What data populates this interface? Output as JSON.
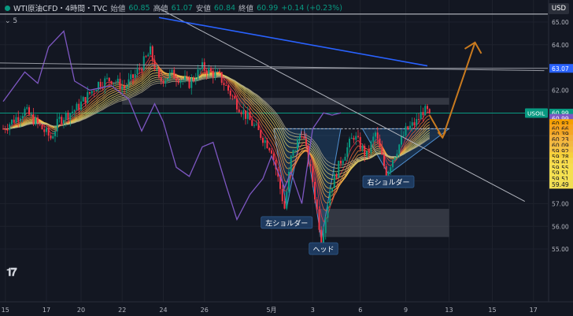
{
  "header": {
    "symbol": "WTI原油CFD・4時間・TVC",
    "open_label": "始値",
    "open": "60.85",
    "high_label": "高値",
    "high": "61.07",
    "low_label": "安値",
    "low": "60.84",
    "close_label": "終値",
    "close": "60.99",
    "change": "+0.14 (+0.23%)",
    "indicator_toggle": "⌄ 5"
  },
  "currency_badge": "USD",
  "chart_data": {
    "type": "candlestick",
    "ylim": [
      54.6,
      65.4
    ],
    "y_ticks": [
      55.0,
      56.0,
      57.0,
      58.0,
      59.0,
      60.0,
      61.0,
      62.0,
      63.0,
      64.0,
      65.0
    ],
    "x_ticks": [
      {
        "label": "15",
        "bar": 1
      },
      {
        "label": "17",
        "bar": 20
      },
      {
        "label": "20",
        "bar": 36
      },
      {
        "label": "22",
        "bar": 55
      },
      {
        "label": "24",
        "bar": 74
      },
      {
        "label": "26",
        "bar": 93
      },
      {
        "label": "5月",
        "bar": 124
      },
      {
        "label": "3",
        "bar": 143
      },
      {
        "label": "6",
        "bar": 165
      },
      {
        "label": "9",
        "bar": 186
      },
      {
        "label": "13",
        "bar": 206
      },
      {
        "label": "15",
        "bar": 226
      },
      {
        "label": "17",
        "bar": 245
      }
    ],
    "bar_count": 198,
    "pivots": [
      {
        "bar": 0,
        "price": 60.3
      },
      {
        "bar": 10,
        "price": 61.1
      },
      {
        "bar": 22,
        "price": 59.9
      },
      {
        "bar": 26,
        "price": 60.7
      },
      {
        "bar": 34,
        "price": 61.2
      },
      {
        "bar": 44,
        "price": 62.3
      },
      {
        "bar": 50,
        "price": 62.5
      },
      {
        "bar": 56,
        "price": 62.1
      },
      {
        "bar": 62,
        "price": 62.8
      },
      {
        "bar": 68,
        "price": 63.7
      },
      {
        "bar": 72,
        "price": 62.4
      },
      {
        "bar": 78,
        "price": 62.7
      },
      {
        "bar": 86,
        "price": 62.3
      },
      {
        "bar": 92,
        "price": 63.0
      },
      {
        "bar": 100,
        "price": 62.6
      },
      {
        "bar": 108,
        "price": 61.4
      },
      {
        "bar": 116,
        "price": 60.4
      },
      {
        "bar": 124,
        "price": 59.4
      },
      {
        "bar": 130,
        "price": 56.8
      },
      {
        "bar": 133,
        "price": 59.0
      },
      {
        "bar": 138,
        "price": 60.2
      },
      {
        "bar": 143,
        "price": 58.0
      },
      {
        "bar": 147,
        "price": 55.4
      },
      {
        "bar": 151,
        "price": 57.6
      },
      {
        "bar": 156,
        "price": 58.9
      },
      {
        "bar": 162,
        "price": 60.0
      },
      {
        "bar": 168,
        "price": 59.1
      },
      {
        "bar": 172,
        "price": 60.1
      },
      {
        "bar": 177,
        "price": 58.3
      },
      {
        "bar": 180,
        "price": 59.0
      },
      {
        "bar": 186,
        "price": 60.2
      },
      {
        "bar": 191,
        "price": 60.6
      },
      {
        "bar": 194,
        "price": 61.1
      },
      {
        "bar": 197,
        "price": 60.99
      }
    ],
    "horizontal_lines": [
      {
        "price": 65.35,
        "color": "#d1d4dc"
      },
      {
        "price": 62.96,
        "color": "#9598a1"
      },
      {
        "price": 60.99,
        "color": "#089981"
      }
    ],
    "zones": [
      {
        "from_bar": 55,
        "to_bar": 206,
        "price_low": 61.36,
        "price_high": 61.66
      },
      {
        "from_bar": 146,
        "to_bar": 206,
        "price_low": 55.53,
        "price_high": 56.77
      }
    ],
    "trendlines": [
      {
        "from": {
          "bar": 72,
          "price": 65.6
        },
        "to": {
          "bar": 241,
          "price": 57.1
        },
        "color": "#b2b5be"
      },
      {
        "from": {
          "bar": 72,
          "price": 65.2
        },
        "to": {
          "bar": 196,
          "price": 63.07
        },
        "color": "#2962ff"
      },
      {
        "from": {
          "bar": -2,
          "price": 63.2
        },
        "to": {
          "bar": 250,
          "price": 62.86
        },
        "color": "#9598a1"
      }
    ],
    "oscillator_line": {
      "color": "#7e57c2",
      "points": [
        {
          "bar": 0,
          "price": 61.5
        },
        {
          "bar": 10,
          "price": 62.8
        },
        {
          "bar": 16,
          "price": 62.3
        },
        {
          "bar": 21,
          "price": 63.9
        },
        {
          "bar": 28,
          "price": 64.6
        },
        {
          "bar": 33,
          "price": 62.4
        },
        {
          "bar": 40,
          "price": 62.0
        },
        {
          "bar": 50,
          "price": 62.2
        },
        {
          "bar": 58,
          "price": 61.6
        },
        {
          "bar": 64,
          "price": 60.2
        },
        {
          "bar": 70,
          "price": 61.4
        },
        {
          "bar": 74,
          "price": 60.6
        },
        {
          "bar": 80,
          "price": 58.6
        },
        {
          "bar": 86,
          "price": 58.2
        },
        {
          "bar": 92,
          "price": 59.5
        },
        {
          "bar": 97,
          "price": 59.7
        },
        {
          "bar": 103,
          "price": 57.8
        },
        {
          "bar": 108,
          "price": 56.3
        },
        {
          "bar": 114,
          "price": 57.4
        },
        {
          "bar": 120,
          "price": 58.1
        },
        {
          "bar": 124,
          "price": 59.1
        },
        {
          "bar": 130,
          "price": 57.7
        },
        {
          "bar": 133,
          "price": 58.4
        },
        {
          "bar": 138,
          "price": 57.0
        },
        {
          "bar": 143,
          "price": 60.3
        },
        {
          "bar": 148,
          "price": 61.0
        },
        {
          "bar": 152,
          "price": 60.9
        },
        {
          "bar": 156,
          "price": 61.0
        }
      ]
    },
    "head_shoulders": {
      "neckline_price": 60.3,
      "left_shoulder": {
        "from_bar": 125,
        "bottom_bar": 131,
        "bottom_price": 56.8,
        "to_bar": 138
      },
      "head": {
        "from_bar": 139,
        "bottom_bar": 147,
        "bottom_price": 55.4,
        "to_bar": 156
      },
      "right_shoulder": {
        "from_bar": 166,
        "bottom_bar": 178,
        "bottom_price": 58.3,
        "to_bar": 206
      }
    },
    "projection_arrows": [
      {
        "from": {
          "bar": 197,
          "price": 60.9
        },
        "to": {
          "bar": 203,
          "price": 59.9
        }
      },
      {
        "from": {
          "bar": 203,
          "price": 59.9
        },
        "to": {
          "bar": 218,
          "price": 64.1
        }
      }
    ],
    "annotations": [
      {
        "text": "左ショルダー",
        "bar": 131,
        "price": 56.15
      },
      {
        "text": "ヘッド",
        "bar": 148,
        "price": 55.0
      },
      {
        "text": "右ショルダー",
        "bar": 178,
        "price": 57.95
      }
    ],
    "price_labels": [
      {
        "text": "65.00",
        "price": 65.0
      },
      {
        "text": "64.00",
        "price": 64.0
      },
      {
        "text": "62.00",
        "price": 62.0
      },
      {
        "text": "57.00",
        "price": 57.0
      },
      {
        "text": "56.00",
        "price": 56.0
      },
      {
        "text": "55.00",
        "price": 55.0
      },
      {
        "text": "63.07",
        "price": 62.96,
        "bg": "#2962ff",
        "fg": "#ffffff"
      },
      {
        "text": "60.99",
        "price": 60.99,
        "bg": "#089981",
        "fg": "#ffffff"
      },
      {
        "text": "60.99",
        "price": 60.76,
        "bg": "#7e57c2",
        "fg": "#ffffff"
      },
      {
        "text": "60.83",
        "price": 60.53,
        "bg": "#f59f00",
        "fg": "#131722"
      },
      {
        "text": "60.66",
        "price": 60.3,
        "bg": "#f7a21b",
        "fg": "#131722"
      },
      {
        "text": "60.39",
        "price": 60.07,
        "bg": "#f5a623",
        "fg": "#131722"
      },
      {
        "text": "60.23",
        "price": 59.84,
        "bg": "#f4b03a",
        "fg": "#131722"
      },
      {
        "text": "60.09",
        "price": 59.57,
        "bg": "#f3b941",
        "fg": "#131722"
      },
      {
        "text": "59.92",
        "price": 59.32,
        "bg": "#f5c242",
        "fg": "#131722"
      },
      {
        "text": "59.78",
        "price": 59.07,
        "bg": "#f6d13b",
        "fg": "#131722"
      },
      {
        "text": "59.61",
        "price": 58.83,
        "bg": "#f7d94a",
        "fg": "#131722"
      },
      {
        "text": "59.55",
        "price": 58.58,
        "bg": "#f7de4f",
        "fg": "#131722"
      },
      {
        "text": "59.51",
        "price": 58.35,
        "bg": "#f5e04f",
        "fg": "#131722"
      },
      {
        "text": "59.51",
        "price": 58.1,
        "bg": "#f3e052",
        "fg": "#131722"
      },
      {
        "text": "59.49",
        "price": 57.85,
        "bg": "#f1de54",
        "fg": "#131722"
      }
    ],
    "symbol_tag": {
      "text": "USOIL",
      "price": 60.99
    }
  }
}
